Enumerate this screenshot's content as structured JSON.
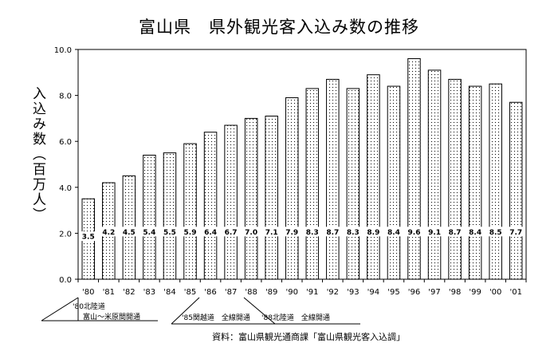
{
  "chart_data": {
    "type": "bar",
    "title": "富山県　県外観光客入込み数の推移",
    "ylabel": "入込み数（百万人）",
    "ylim": [
      0,
      10
    ],
    "yticks": [
      "0.0",
      "2.0",
      "4.0",
      "6.0",
      "8.0",
      "10.0"
    ],
    "grid": false,
    "categories": [
      "'80",
      "'81",
      "'82",
      "'83",
      "'84",
      "'85",
      "'86",
      "'87",
      "'88",
      "'89",
      "'90",
      "'91",
      "'92",
      "'93",
      "'94",
      "'95",
      "'96",
      "'97",
      "'98",
      "'99",
      "'00",
      "'01"
    ],
    "values": [
      3.5,
      4.2,
      4.5,
      5.4,
      5.5,
      5.9,
      6.4,
      6.7,
      7.0,
      7.1,
      7.9,
      8.3,
      8.7,
      8.3,
      8.9,
      8.4,
      9.6,
      9.1,
      8.7,
      8.4,
      8.5,
      7.7
    ],
    "value_labels": [
      "3.5",
      "4.2",
      "4.5",
      "5.4",
      "5.5",
      "5.9",
      "6.4",
      "6.7",
      "7.0",
      "7.1",
      "7.9",
      "8.3",
      "8.7",
      "8.3",
      "8.9",
      "8.4",
      "9.6",
      "9.1",
      "8.7",
      "8.4",
      "8.5",
      "7.7"
    ],
    "annotations": [
      {
        "line1": "'80北陸道",
        "line2": "富山～米原間開通"
      },
      {
        "line1": "'85関越道　全線開通"
      },
      {
        "line1": "'88北陸道　全線開通"
      }
    ],
    "source": "資料：富山県観光通商課「富山県観光客入込調」"
  },
  "colors": {
    "bar_fill": "#ffffff",
    "bar_dots": "#000000",
    "axis": "#000000"
  }
}
